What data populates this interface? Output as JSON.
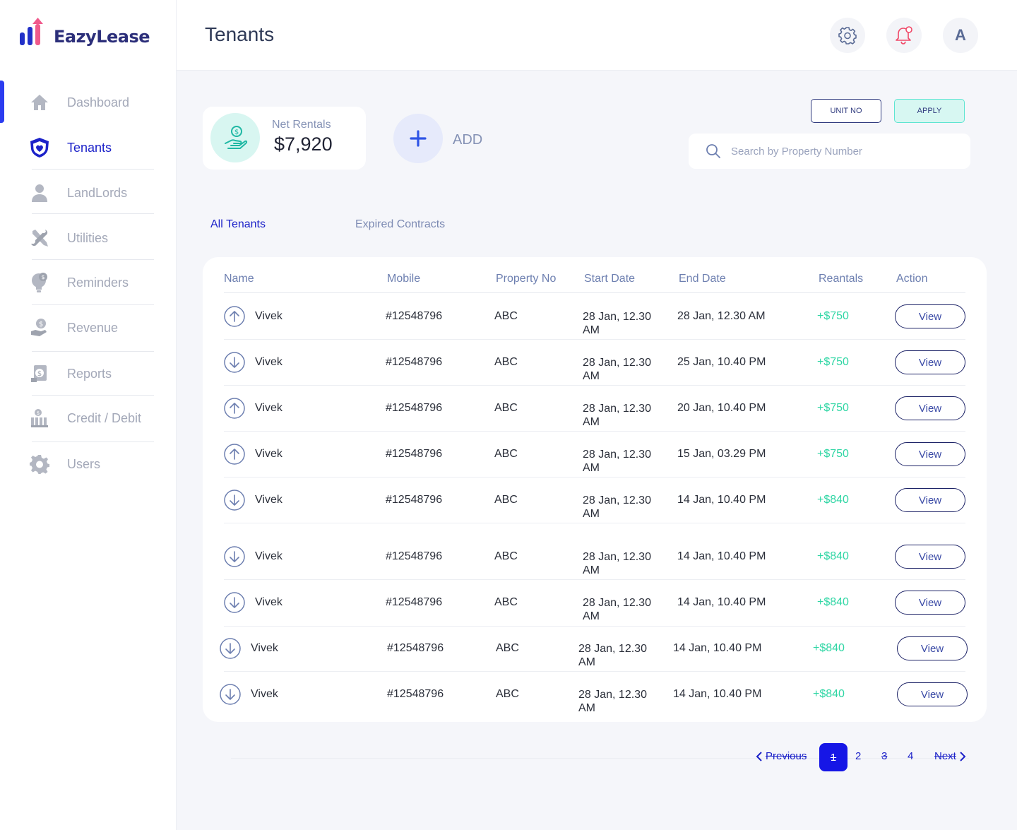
{
  "app": {
    "name": "EazyLease"
  },
  "sidebar": {
    "items": [
      {
        "label": "Dashboard",
        "icon": "home-icon"
      },
      {
        "label": "Tenants",
        "icon": "shield-heart-icon"
      },
      {
        "label": "LandLords",
        "icon": "user-icon"
      },
      {
        "label": "Utilities",
        "icon": "tools-icon"
      },
      {
        "label": "Reminders",
        "icon": "lightbulb-dollar-icon"
      },
      {
        "label": "Revenue",
        "icon": "hand-dollar-icon"
      },
      {
        "label": "Reports",
        "icon": "report-dollar-icon"
      },
      {
        "label": "Credit / Debit",
        "icon": "bank-dollar-icon"
      },
      {
        "label": "Users",
        "icon": "gear-icon"
      }
    ],
    "active": "Tenants"
  },
  "header": {
    "title": "Tenants",
    "avatar_letter": "A"
  },
  "summary": {
    "net_label": "Net Rentals",
    "net_value": "$7,920",
    "add_label": "ADD"
  },
  "filters": {
    "unit_label": "UNIT NO",
    "apply_label": "APPLY",
    "search_placeholder": "Search by Property Number"
  },
  "tabs": {
    "all": "All Tenants",
    "expired": "Expired Contracts"
  },
  "table": {
    "headers": {
      "name": "Name",
      "mobile": "Mobile",
      "property": "Property No",
      "start": "Start Date",
      "end": "End Date",
      "rentals": "Reantals",
      "action": "Action"
    },
    "rows": [
      {
        "dir": "up",
        "name": "Vivek",
        "mobile": "#12548796",
        "property": "ABC",
        "start": "28 Jan, 12.30 AM",
        "end": "28 Jan, 12.30 AM",
        "amount": "+$750",
        "action": "View"
      },
      {
        "dir": "down",
        "name": "Vivek",
        "mobile": "#12548796",
        "property": "ABC",
        "start": "28 Jan, 12.30 AM",
        "end": "25 Jan, 10.40 PM",
        "amount": "+$750",
        "action": "View"
      },
      {
        "dir": "up",
        "name": "Vivek",
        "mobile": "#12548796",
        "property": "ABC",
        "start": "28 Jan, 12.30 AM",
        "end": "20 Jan, 10.40 PM",
        "amount": "+$750",
        "action": "View"
      },
      {
        "dir": "up",
        "name": "Vivek",
        "mobile": "#12548796",
        "property": "ABC",
        "start": "28 Jan, 12.30 AM",
        "end": "15 Jan, 03.29 PM",
        "amount": "+$750",
        "action": "View"
      },
      {
        "dir": "down",
        "name": "Vivek",
        "mobile": "#12548796",
        "property": "ABC",
        "start": "28 Jan, 12.30 AM",
        "end": "14 Jan, 10.40 PM",
        "amount": "+$840",
        "action": "View"
      },
      {
        "dir": "down",
        "name": "Vivek",
        "mobile": "#12548796",
        "property": "ABC",
        "start": "28 Jan, 12.30 AM",
        "end": "14 Jan, 10.40 PM",
        "amount": "+$840",
        "action": "View"
      },
      {
        "dir": "down",
        "name": "Vivek",
        "mobile": "#12548796",
        "property": "ABC",
        "start": "28 Jan, 12.30 AM",
        "end": "14 Jan, 10.40 PM",
        "amount": "+$840",
        "action": "View"
      },
      {
        "dir": "down",
        "name": "Vivek",
        "mobile": "#12548796",
        "property": "ABC",
        "start": "28 Jan, 12.30 AM",
        "end": "14 Jan, 10.40 PM",
        "amount": "+$840",
        "action": "View"
      },
      {
        "dir": "down",
        "name": "Vivek",
        "mobile": "#12548796",
        "property": "ABC",
        "start": "28 Jan, 12.30 AM",
        "end": "14 Jan, 10.40 PM",
        "amount": "+$840",
        "action": "View"
      }
    ]
  },
  "pagination": {
    "prev": "Previous",
    "next": "Next",
    "pages": [
      "1",
      "2",
      "3",
      "4"
    ],
    "current": "1"
  },
  "colors": {
    "accent": "#1c22c9",
    "positive": "#2fd6a4",
    "teal_bg": "#d7f7f2",
    "logo_pink": "#f05a8c"
  }
}
